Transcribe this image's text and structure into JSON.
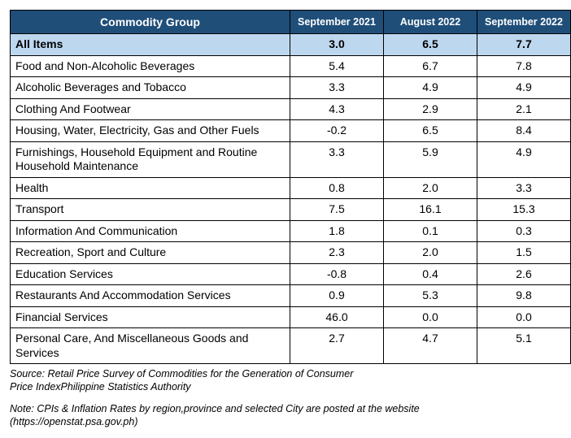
{
  "header": {
    "group": "Commodity Group",
    "col1": "September 2021",
    "col2": "August 2022",
    "col3": "September 2022"
  },
  "highlight": {
    "label": "All Items",
    "v1": "3.0",
    "v2": "6.5",
    "v3": "7.7"
  },
  "rows": [
    {
      "label": "Food and Non-Alcoholic Beverages",
      "v1": "5.4",
      "v2": "6.7",
      "v3": "7.8"
    },
    {
      "label": "Alcoholic Beverages and Tobacco",
      "v1": "3.3",
      "v2": "4.9",
      "v3": "4.9"
    },
    {
      "label": "Clothing And Footwear",
      "v1": "4.3",
      "v2": "2.9",
      "v3": "2.1"
    },
    {
      "label": "Housing, Water, Electricity, Gas and Other Fuels",
      "v1": "-0.2",
      "v2": "6.5",
      "v3": "8.4"
    },
    {
      "label": "Furnishings, Household Equipment and Routine Household Maintenance",
      "v1": "3.3",
      "v2": "5.9",
      "v3": "4.9"
    },
    {
      "label": "Health",
      "v1": "0.8",
      "v2": "2.0",
      "v3": "3.3"
    },
    {
      "label": "Transport",
      "v1": "7.5",
      "v2": "16.1",
      "v3": "15.3"
    },
    {
      "label": "Information And Communication",
      "v1": "1.8",
      "v2": "0.1",
      "v3": "0.3"
    },
    {
      "label": "Recreation, Sport and Culture",
      "v1": "2.3",
      "v2": "2.0",
      "v3": "1.5"
    },
    {
      "label": "Education Services",
      "v1": "-0.8",
      "v2": "0.4",
      "v3": "2.6"
    },
    {
      "label": "Restaurants And Accommodation Services",
      "v1": "0.9",
      "v2": "5.3",
      "v3": "9.8"
    },
    {
      "label": "Financial Services",
      "v1": "46.0",
      "v2": "0.0",
      "v3": "0.0"
    },
    {
      "label": "Personal Care, And Miscellaneous Goods and Services",
      "v1": "2.7",
      "v2": "4.7",
      "v3": "5.1"
    }
  ],
  "source_line1": "Source: Retail Price Survey of Commodities for the Generation of Consumer",
  "source_line2": "Price IndexPhilippine Statistics Authority",
  "note_line1": "Note: CPIs & Inflation Rates by region,province and selected City are posted at the website",
  "note_line2": "(https://openstat.psa.gov.ph)",
  "colors": {
    "header_bg": "#1f4e79",
    "header_text": "#ffffff",
    "highlight_bg": "#bdd7ee",
    "border": "#000000",
    "body_bg": "#ffffff"
  },
  "fonts": {
    "family": "Arial, sans-serif",
    "header_size_pt": 11,
    "body_size_pt": 11,
    "footer_size_pt": 9.5
  }
}
